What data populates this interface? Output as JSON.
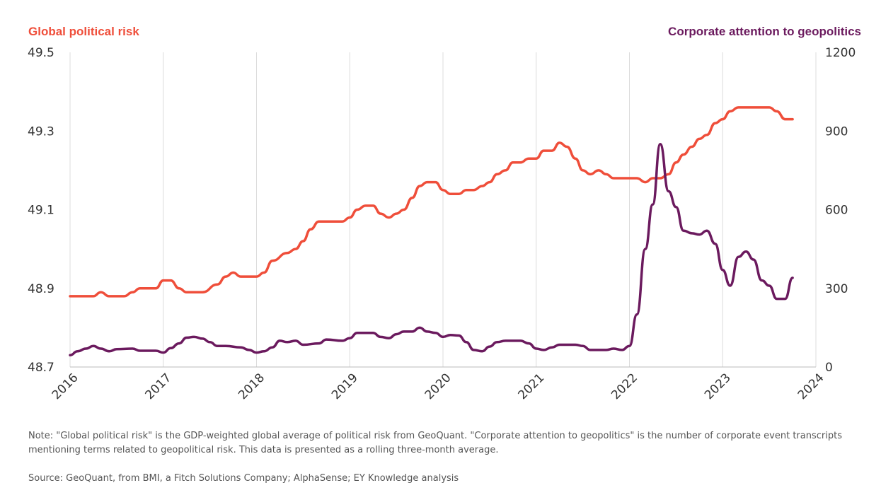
{
  "chart_data": {
    "type": "line",
    "left_axis": {
      "label": "Global political risk",
      "min": 48.7,
      "max": 49.5,
      "ticks": [
        "49.5",
        "49.3",
        "49.1",
        "48.9",
        "48.7"
      ],
      "tick_values": [
        49.5,
        49.3,
        49.1,
        48.9,
        48.7
      ]
    },
    "right_axis": {
      "label": "Corporate attention to geopolitics",
      "min": 0,
      "max": 1200,
      "ticks": [
        "1200",
        "900",
        "600",
        "300",
        "0"
      ],
      "tick_values": [
        1200,
        900,
        600,
        300,
        0
      ]
    },
    "x_axis": {
      "min": 2016,
      "max": 2024,
      "ticks": [
        "2016",
        "2017",
        "2018",
        "2019",
        "2020",
        "2021",
        "2022",
        "2023",
        "2024"
      ],
      "tick_values": [
        2016,
        2017,
        2018,
        2019,
        2020,
        2021,
        2022,
        2023,
        2024
      ]
    },
    "grid": "vertical",
    "series": [
      {
        "name": "Global political risk",
        "axis": "left",
        "color": "#ef4e3a",
        "points": [
          [
            2016.0,
            48.88
          ],
          [
            2016.25,
            48.88
          ],
          [
            2016.33,
            48.89
          ],
          [
            2016.42,
            48.88
          ],
          [
            2016.58,
            48.88
          ],
          [
            2016.67,
            48.89
          ],
          [
            2016.75,
            48.9
          ],
          [
            2016.92,
            48.9
          ],
          [
            2017.0,
            48.92
          ],
          [
            2017.08,
            48.92
          ],
          [
            2017.17,
            48.9
          ],
          [
            2017.25,
            48.89
          ],
          [
            2017.42,
            48.89
          ],
          [
            2017.58,
            48.91
          ],
          [
            2017.67,
            48.93
          ],
          [
            2017.75,
            48.94
          ],
          [
            2017.83,
            48.93
          ],
          [
            2018.0,
            48.93
          ],
          [
            2018.08,
            48.94
          ],
          [
            2018.17,
            48.97
          ],
          [
            2018.33,
            48.99
          ],
          [
            2018.42,
            49.0
          ],
          [
            2018.5,
            49.02
          ],
          [
            2018.58,
            49.05
          ],
          [
            2018.67,
            49.07
          ],
          [
            2018.92,
            49.07
          ],
          [
            2019.0,
            49.08
          ],
          [
            2019.08,
            49.1
          ],
          [
            2019.17,
            49.11
          ],
          [
            2019.25,
            49.11
          ],
          [
            2019.33,
            49.09
          ],
          [
            2019.42,
            49.08
          ],
          [
            2019.5,
            49.09
          ],
          [
            2019.58,
            49.1
          ],
          [
            2019.67,
            49.13
          ],
          [
            2019.75,
            49.16
          ],
          [
            2019.83,
            49.17
          ],
          [
            2019.92,
            49.17
          ],
          [
            2020.0,
            49.15
          ],
          [
            2020.08,
            49.14
          ],
          [
            2020.17,
            49.14
          ],
          [
            2020.25,
            49.15
          ],
          [
            2020.33,
            49.15
          ],
          [
            2020.42,
            49.16
          ],
          [
            2020.5,
            49.17
          ],
          [
            2020.58,
            49.19
          ],
          [
            2020.67,
            49.2
          ],
          [
            2020.75,
            49.22
          ],
          [
            2020.83,
            49.22
          ],
          [
            2020.92,
            49.23
          ],
          [
            2021.0,
            49.23
          ],
          [
            2021.08,
            49.25
          ],
          [
            2021.17,
            49.25
          ],
          [
            2021.25,
            49.27
          ],
          [
            2021.33,
            49.26
          ],
          [
            2021.42,
            49.23
          ],
          [
            2021.5,
            49.2
          ],
          [
            2021.58,
            49.19
          ],
          [
            2021.67,
            49.2
          ],
          [
            2021.75,
            49.19
          ],
          [
            2021.83,
            49.18
          ],
          [
            2022.0,
            49.18
          ],
          [
            2022.08,
            49.18
          ],
          [
            2022.17,
            49.17
          ],
          [
            2022.25,
            49.18
          ],
          [
            2022.33,
            49.18
          ],
          [
            2022.42,
            49.19
          ],
          [
            2022.5,
            49.22
          ],
          [
            2022.58,
            49.24
          ],
          [
            2022.67,
            49.26
          ],
          [
            2022.75,
            49.28
          ],
          [
            2022.83,
            49.29
          ],
          [
            2022.92,
            49.32
          ],
          [
            2023.0,
            49.33
          ],
          [
            2023.08,
            49.35
          ],
          [
            2023.17,
            49.36
          ],
          [
            2023.25,
            49.36
          ],
          [
            2023.42,
            49.36
          ],
          [
            2023.5,
            49.36
          ],
          [
            2023.58,
            49.35
          ],
          [
            2023.67,
            49.33
          ],
          [
            2023.75,
            49.33
          ]
        ]
      },
      {
        "name": "Corporate attention to geopolitics",
        "axis": "right",
        "color": "#6b1a5e",
        "points": [
          [
            2016.0,
            45
          ],
          [
            2016.08,
            60
          ],
          [
            2016.17,
            70
          ],
          [
            2016.25,
            80
          ],
          [
            2016.33,
            70
          ],
          [
            2016.42,
            60
          ],
          [
            2016.5,
            68
          ],
          [
            2016.67,
            70
          ],
          [
            2016.75,
            62
          ],
          [
            2016.92,
            62
          ],
          [
            2017.0,
            55
          ],
          [
            2017.08,
            72
          ],
          [
            2017.17,
            90
          ],
          [
            2017.25,
            112
          ],
          [
            2017.33,
            115
          ],
          [
            2017.42,
            108
          ],
          [
            2017.5,
            95
          ],
          [
            2017.58,
            80
          ],
          [
            2017.67,
            80
          ],
          [
            2017.83,
            75
          ],
          [
            2017.92,
            65
          ],
          [
            2018.0,
            55
          ],
          [
            2018.08,
            60
          ],
          [
            2018.17,
            75
          ],
          [
            2018.25,
            100
          ],
          [
            2018.33,
            95
          ],
          [
            2018.42,
            100
          ],
          [
            2018.5,
            85
          ],
          [
            2018.67,
            90
          ],
          [
            2018.75,
            105
          ],
          [
            2018.92,
            100
          ],
          [
            2019.0,
            110
          ],
          [
            2019.08,
            130
          ],
          [
            2019.25,
            130
          ],
          [
            2019.33,
            115
          ],
          [
            2019.42,
            110
          ],
          [
            2019.5,
            125
          ],
          [
            2019.58,
            135
          ],
          [
            2019.67,
            135
          ],
          [
            2019.75,
            150
          ],
          [
            2019.83,
            135
          ],
          [
            2019.92,
            130
          ],
          [
            2020.0,
            115
          ],
          [
            2020.08,
            122
          ],
          [
            2020.17,
            120
          ],
          [
            2020.25,
            95
          ],
          [
            2020.33,
            65
          ],
          [
            2020.42,
            60
          ],
          [
            2020.5,
            78
          ],
          [
            2020.58,
            95
          ],
          [
            2020.67,
            100
          ],
          [
            2020.83,
            100
          ],
          [
            2020.92,
            90
          ],
          [
            2021.0,
            70
          ],
          [
            2021.08,
            65
          ],
          [
            2021.17,
            75
          ],
          [
            2021.25,
            85
          ],
          [
            2021.42,
            85
          ],
          [
            2021.5,
            80
          ],
          [
            2021.58,
            65
          ],
          [
            2021.75,
            65
          ],
          [
            2021.83,
            70
          ],
          [
            2021.92,
            65
          ],
          [
            2022.0,
            80
          ],
          [
            2022.08,
            200
          ],
          [
            2022.17,
            450
          ],
          [
            2022.25,
            620
          ],
          [
            2022.33,
            850
          ],
          [
            2022.42,
            670
          ],
          [
            2022.5,
            610
          ],
          [
            2022.58,
            520
          ],
          [
            2022.67,
            510
          ],
          [
            2022.75,
            505
          ],
          [
            2022.83,
            520
          ],
          [
            2022.92,
            470
          ],
          [
            2023.0,
            370
          ],
          [
            2023.08,
            310
          ],
          [
            2023.17,
            420
          ],
          [
            2023.25,
            440
          ],
          [
            2023.33,
            410
          ],
          [
            2023.42,
            330
          ],
          [
            2023.5,
            310
          ],
          [
            2023.58,
            260
          ],
          [
            2023.67,
            260
          ],
          [
            2023.75,
            340
          ]
        ]
      }
    ],
    "note": "Note: \"Global political risk\" is the GDP-weighted global average of political risk from GeoQuant. \"Corporate attention to geopolitics\" is the number of corporate event transcripts mentioning terms related to geopolitical risk. This data is presented as a rolling three-month average.",
    "source": "Source: GeoQuant, from BMI, a Fitch Solutions Company; AlphaSense; EY Knowledge analysis"
  }
}
